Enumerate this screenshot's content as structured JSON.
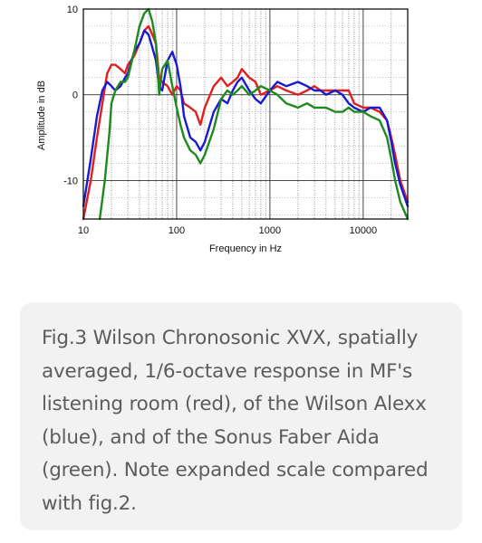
{
  "chart_data": {
    "type": "line",
    "xlabel": "Frequency in Hz",
    "ylabel": "Amplitude in dB",
    "x_scale": "log",
    "xlim": [
      10,
      30000
    ],
    "ylim": [
      -14.5,
      10
    ],
    "x_ticks": [
      10,
      100,
      1000,
      10000
    ],
    "x_tick_labels": [
      "10",
      "100",
      "1000",
      "10000"
    ],
    "y_ticks": [
      10,
      0,
      -10
    ],
    "y_tick_labels": [
      "10",
      "0",
      "-10"
    ],
    "grid": true,
    "legend": "none",
    "series": [
      {
        "color": "#e02020",
        "x": [
          10,
          12,
          14,
          16,
          18,
          20,
          22,
          25,
          28,
          30,
          35,
          40,
          45,
          50,
          55,
          60,
          65,
          70,
          80,
          90,
          100,
          110,
          120,
          140,
          160,
          180,
          200,
          250,
          300,
          350,
          400,
          450,
          500,
          600,
          700,
          800,
          1000,
          1200,
          1500,
          2000,
          2500,
          3000,
          3500,
          4000,
          5000,
          6000,
          7000,
          8000,
          10000,
          12000,
          15000,
          18000,
          20000,
          22000,
          25000,
          30000
        ],
        "y": [
          -14.5,
          -10,
          -5,
          -1,
          2.5,
          3.5,
          3.5,
          3,
          2.5,
          3.5,
          4.5,
          6,
          7.5,
          8,
          7,
          6,
          2,
          1.5,
          1,
          0,
          1,
          0.5,
          -1,
          -1.5,
          -2,
          -3.5,
          -1.5,
          1,
          2,
          1,
          1.5,
          2,
          3,
          2,
          1.5,
          0,
          0.5,
          1,
          0.5,
          0,
          0.5,
          1,
          0.5,
          0.5,
          0.5,
          0.5,
          0.5,
          -1,
          -1.5,
          -1.5,
          -2,
          -3,
          -5,
          -7,
          -10,
          -12.5
        ]
      },
      {
        "color": "#1a1ad0",
        "x": [
          10,
          12,
          14,
          16,
          18,
          20,
          22,
          25,
          28,
          30,
          35,
          40,
          45,
          50,
          55,
          60,
          65,
          70,
          80,
          90,
          100,
          110,
          120,
          140,
          160,
          180,
          200,
          250,
          300,
          350,
          400,
          450,
          500,
          600,
          700,
          800,
          1000,
          1200,
          1500,
          2000,
          2500,
          3000,
          3500,
          4000,
          5000,
          6000,
          7000,
          8000,
          10000,
          12000,
          15000,
          18000,
          20000,
          22000,
          25000,
          30000
        ],
        "y": [
          -13,
          -7.5,
          -2.5,
          0.5,
          1.5,
          1,
          0.5,
          1,
          2,
          2.5,
          5,
          6,
          7.5,
          7,
          5.5,
          4,
          1,
          0.5,
          4,
          5,
          3.5,
          1,
          -2.5,
          -5,
          -5.5,
          -6.5,
          -5.5,
          -2,
          -0.5,
          -1,
          0.5,
          1.5,
          2,
          0.5,
          -0.5,
          -1,
          0.5,
          1.5,
          1,
          1.5,
          1,
          0.5,
          0.5,
          0,
          0.5,
          0,
          -1,
          -1.5,
          -2,
          -1.5,
          -1.5,
          -3,
          -5.5,
          -8,
          -10.5,
          -13
        ]
      },
      {
        "color": "#1e8a1e",
        "x": [
          15,
          17,
          19,
          20,
          22,
          25,
          28,
          30,
          35,
          40,
          45,
          50,
          55,
          60,
          65,
          70,
          80,
          90,
          100,
          110,
          120,
          140,
          160,
          180,
          200,
          250,
          300,
          350,
          400,
          450,
          500,
          600,
          700,
          800,
          1000,
          1200,
          1500,
          2000,
          2500,
          3000,
          3500,
          4000,
          5000,
          6000,
          7000,
          8000,
          10000,
          12000,
          15000,
          18000,
          20000,
          22000,
          25000,
          30000
        ],
        "y": [
          -14.5,
          -10,
          -4.5,
          -1,
          0.5,
          1.5,
          1.5,
          2,
          5,
          8,
          9.5,
          10,
          8.5,
          6,
          0,
          3,
          4,
          1,
          -1.5,
          -3.5,
          -5,
          -6.5,
          -7,
          -8,
          -7,
          -4,
          -0.5,
          0.5,
          0,
          0.5,
          1,
          0,
          0.5,
          1,
          0.5,
          0,
          -1,
          -1.5,
          -1,
          -1.5,
          -1.5,
          -1.5,
          -2,
          -2,
          -1.5,
          -2,
          -2,
          -2.5,
          -3,
          -5,
          -7.5,
          -10,
          -12.5,
          -14.5
        ]
      }
    ]
  },
  "caption": {
    "lines": [
      "Fig.3 Wilson Chronosonic XVX, spatially",
      "averaged, 1/6-octave response in MF's",
      "listening room (red), of the Wilson Alexx",
      "(blue), and of the Sonus Faber Aida",
      "(green). Note expanded scale compared",
      "with fig.2."
    ]
  }
}
